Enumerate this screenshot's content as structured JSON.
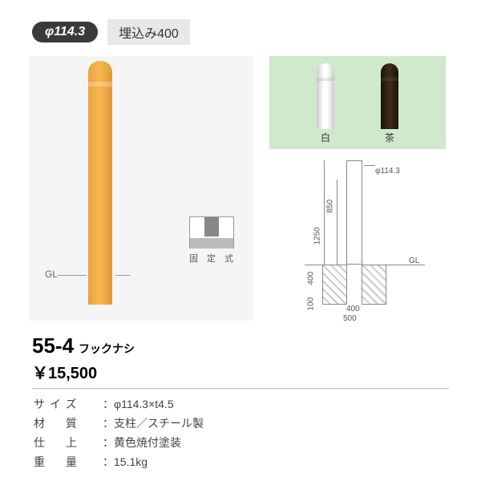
{
  "header": {
    "diameter_badge": "φ114.3",
    "embed_badge": "埋込み400"
  },
  "main_illustration": {
    "gl_label": "GL",
    "pillar_color": "#f4b246",
    "background": "#f5f5f5"
  },
  "koteishiki": {
    "label": "固 定 式"
  },
  "color_options": {
    "white_label": "白",
    "brown_label": "茶",
    "panel_bg": "#d0e8cc"
  },
  "diagram": {
    "phi_label": "φ114.3",
    "gl_label": "GL",
    "height_above": "850",
    "total_height": "1250",
    "embed_depth": "400",
    "base_depth": "100",
    "foundation_width": "400",
    "foundation_outer": "500"
  },
  "product": {
    "model_number": "55-4",
    "model_suffix": "フックナシ",
    "price": "￥15,500",
    "specs": {
      "size_label": "サイズ",
      "size_value": "：φ114.3×t4.5",
      "material_label": "材　質",
      "material_value": "：支柱／スチール製",
      "finish_label": "仕　上",
      "finish_value": "：黄色焼付塗装",
      "weight_label": "重　量",
      "weight_value": "：15.1kg"
    }
  }
}
